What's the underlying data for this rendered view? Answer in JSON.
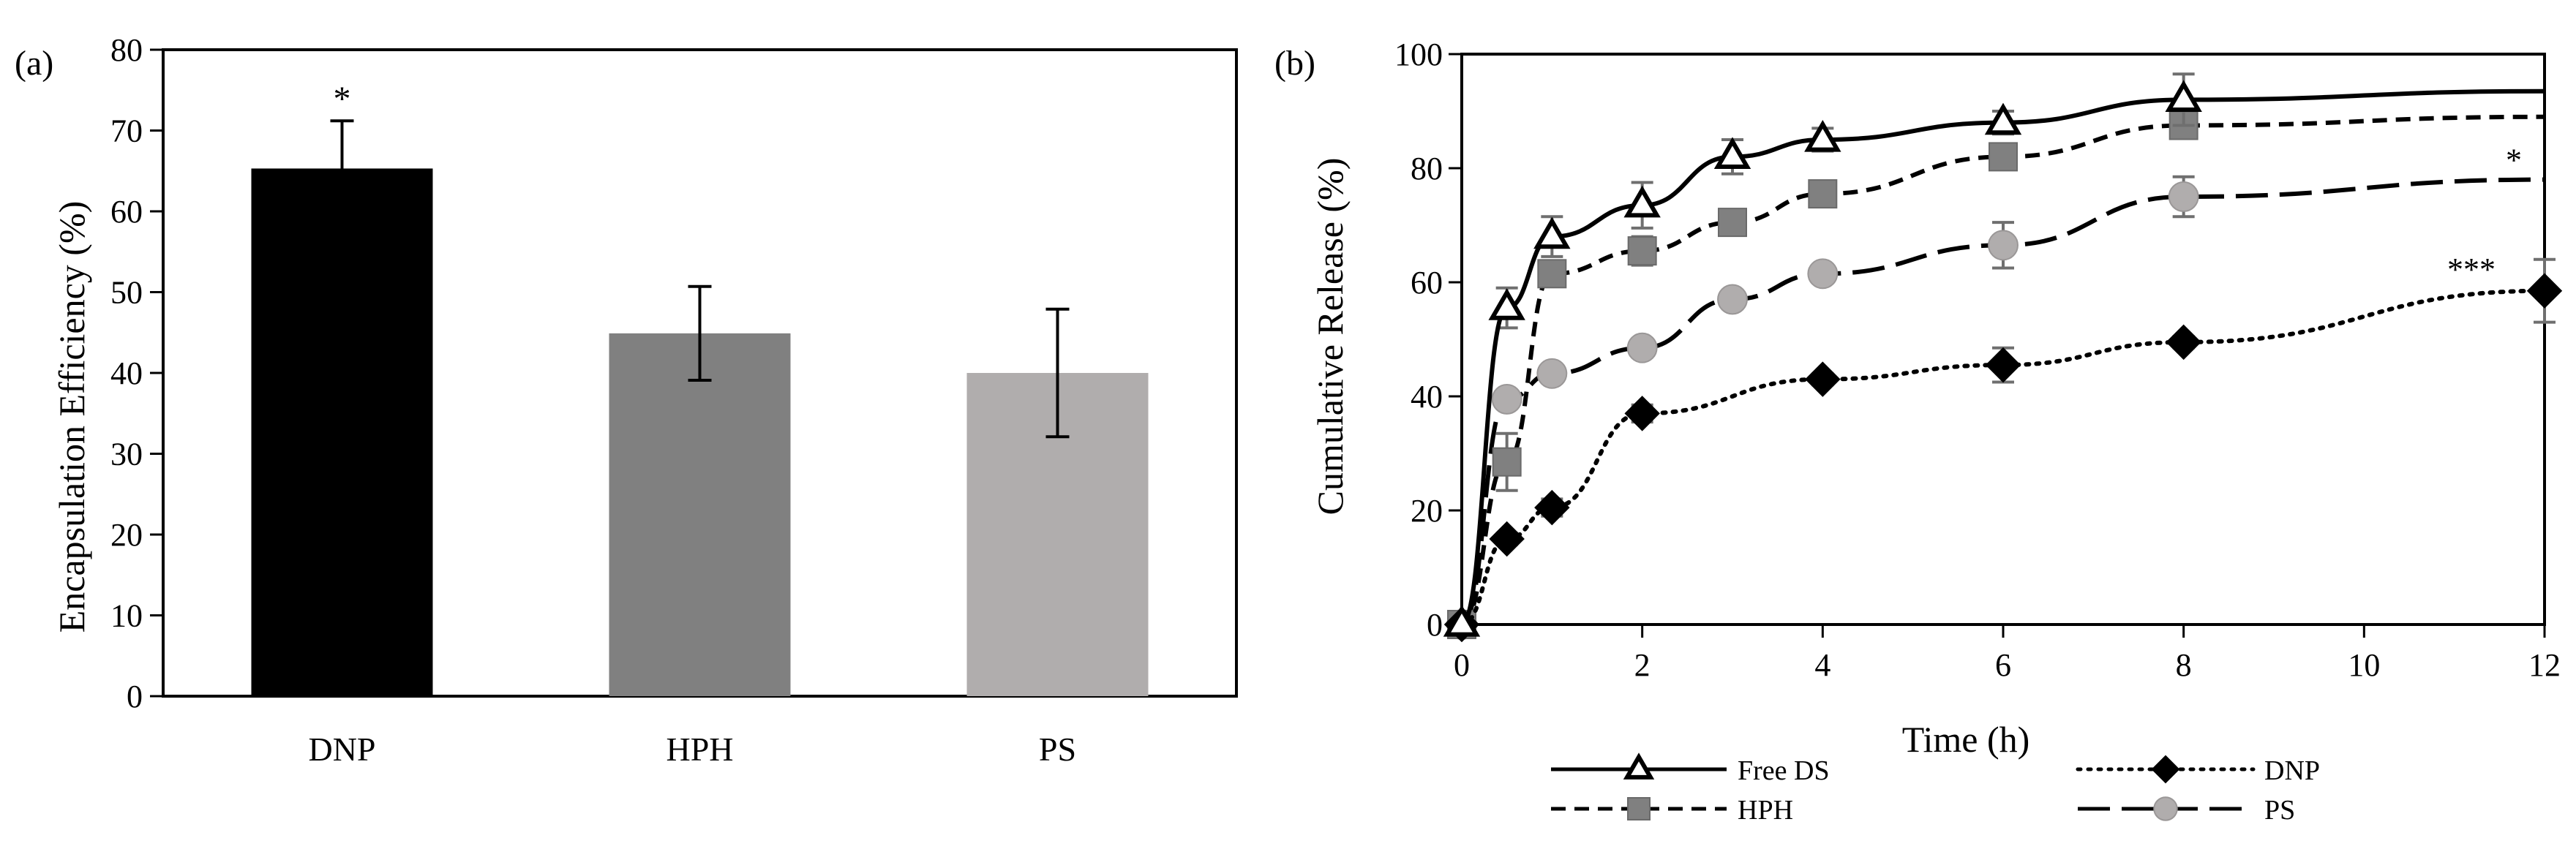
{
  "chart_data": [
    {
      "type": "bar",
      "panel_label": "(a)",
      "title": "",
      "xlabel": "",
      "ylabel": "Encapsulation Efficiency (%)",
      "categories": [
        "DNP",
        "HPH",
        "PS"
      ],
      "values": [
        65.3,
        44.9,
        40.0
      ],
      "errors": [
        5.9,
        5.8,
        7.9
      ],
      "colors": [
        "#000000",
        "#808080",
        "#b0adad"
      ],
      "annotations": [
        "*",
        "",
        ""
      ],
      "ylim": [
        0,
        80
      ],
      "yticks": [
        0,
        10,
        20,
        30,
        40,
        50,
        60,
        70,
        80
      ],
      "grid": false
    },
    {
      "type": "line",
      "panel_label": "(b)",
      "title": "",
      "xlabel": "Time (h)",
      "ylabel": "Cumulative Release (%)",
      "xlim": [
        0,
        12
      ],
      "ylim": [
        0,
        100
      ],
      "xticks": [
        0,
        2,
        4,
        6,
        8,
        10,
        12
      ],
      "yticks": [
        0,
        20,
        40,
        60,
        80,
        100
      ],
      "grid": false,
      "legend_position": "bottom",
      "series": [
        {
          "name": "Free DS",
          "marker": "triangle-open",
          "line": "solid",
          "color": "#000000",
          "x": [
            0,
            0.5,
            1,
            2,
            3,
            4,
            6,
            8
          ],
          "y": [
            0,
            55.5,
            68,
            73.5,
            82,
            85,
            88,
            92
          ],
          "err": [
            0,
            3.5,
            3.5,
            4,
            3,
            2,
            2,
            4.5
          ],
          "tail": [
            12,
            93.5
          ],
          "annotation": ""
        },
        {
          "name": "DNP",
          "marker": "diamond",
          "line": "dotted",
          "color": "#000000",
          "x": [
            0,
            0.5,
            1,
            2,
            4,
            6,
            8,
            12
          ],
          "y": [
            0,
            15,
            20.5,
            37,
            43,
            45.5,
            49.5,
            58.5
          ],
          "err": [
            0,
            1,
            1.5,
            1.5,
            1,
            3,
            1,
            5.5
          ],
          "tail": null,
          "annotation": "***"
        },
        {
          "name": "HPH",
          "marker": "square",
          "line": "dashed",
          "color": "#808080",
          "x": [
            0,
            0.5,
            1,
            2,
            3,
            4,
            6,
            8
          ],
          "y": [
            0,
            28.5,
            61.5,
            65.5,
            70.5,
            75.5,
            82,
            87.5
          ],
          "err": [
            0,
            5,
            2,
            2.5,
            1,
            1.5,
            2,
            2
          ],
          "tail": [
            12,
            89
          ],
          "annotation": ""
        },
        {
          "name": "PS",
          "marker": "circle",
          "line": "longdash",
          "color": "#b0adad",
          "x": [
            0,
            0.5,
            1,
            2,
            3,
            4,
            6,
            8
          ],
          "y": [
            0,
            39.5,
            44,
            48.5,
            57,
            61.5,
            66.5,
            75
          ],
          "err": [
            0,
            1,
            1,
            1,
            1,
            1,
            4,
            3.5
          ],
          "tail": [
            12,
            78
          ],
          "annotation": "*"
        }
      ]
    }
  ]
}
